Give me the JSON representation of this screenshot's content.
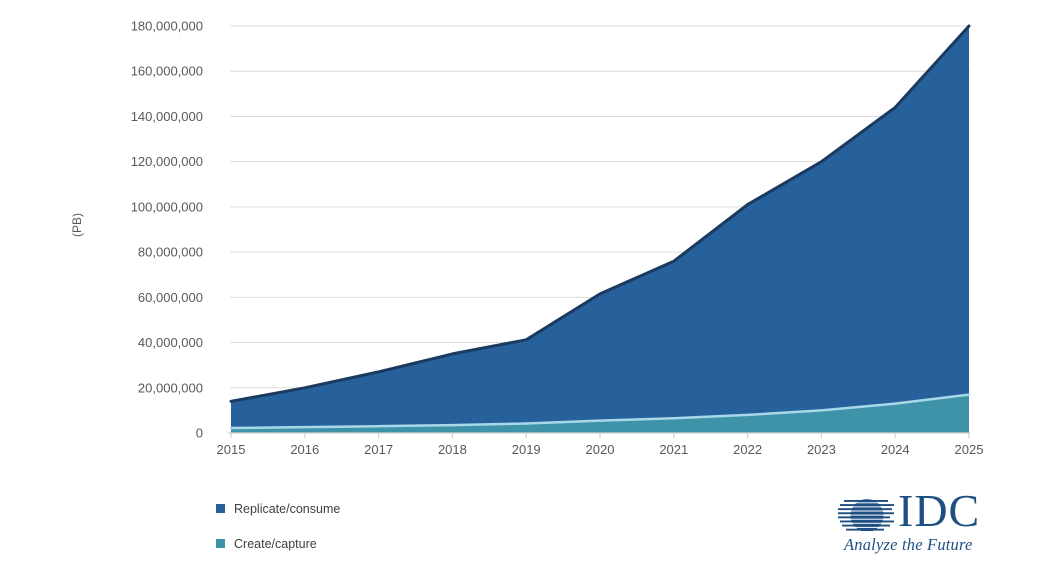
{
  "chart_data": {
    "type": "area",
    "stacked": true,
    "title": "",
    "xlabel": "",
    "ylabel": "(PB)",
    "ylim": [
      0,
      180000000
    ],
    "grid": true,
    "legend_position": "bottom-left",
    "x": [
      2015,
      2016,
      2017,
      2018,
      2019,
      2020,
      2021,
      2022,
      2023,
      2024,
      2025
    ],
    "x_tick_labels": [
      "2015",
      "2016",
      "2017",
      "2018",
      "2019",
      "2020",
      "2021",
      "2022",
      "2023",
      "2024",
      "2025"
    ],
    "y_ticks": [
      {
        "value": 0,
        "label": "0"
      },
      {
        "value": 20000000,
        "label": "20,000,000"
      },
      {
        "value": 40000000,
        "label": "40,000,000"
      },
      {
        "value": 60000000,
        "label": "60,000,000"
      },
      {
        "value": 80000000,
        "label": "80,000,000"
      },
      {
        "value": 100000000,
        "label": "100,000,000"
      },
      {
        "value": 120000000,
        "label": "120,000,000"
      },
      {
        "value": 140000000,
        "label": "140,000,000"
      },
      {
        "value": 160000000,
        "label": "160,000,000"
      },
      {
        "value": 180000000,
        "label": "180,000,000"
      }
    ],
    "series": [
      {
        "name": "Create/capture",
        "stack_order": "bottom",
        "values": [
          2200000,
          2600000,
          3000000,
          3500000,
          4200000,
          5500000,
          6500000,
          8000000,
          10000000,
          13000000,
          17000000
        ],
        "fill_color": "#3F93A9",
        "line_color": "#A9D8E9"
      },
      {
        "name": "Replicate/consume",
        "stack_order": "top",
        "values": [
          11800000,
          17400000,
          24000000,
          31500000,
          37000000,
          56000000,
          69500000,
          93000000,
          110000000,
          131000000,
          163000000
        ],
        "fill_color": "#26619C",
        "line_color": "#1B3A5F"
      }
    ],
    "stacked_totals": [
      14000000,
      20000000,
      27000000,
      35000000,
      41200000,
      61500000,
      76000000,
      101000000,
      120000000,
      144000000,
      180000000
    ]
  },
  "legend": {
    "items": [
      {
        "label": "Replicate/consume",
        "color": "#26619C"
      },
      {
        "label": "Create/capture",
        "color": "#3F93A9"
      }
    ]
  },
  "branding": {
    "logo_text": "IDC",
    "tagline": "Analyze the Future",
    "color": "#1E4F82"
  },
  "style": {
    "grid_color": "#DCDCDC",
    "axis_color": "#D0D0D0",
    "tick_text_color": "#595959"
  }
}
